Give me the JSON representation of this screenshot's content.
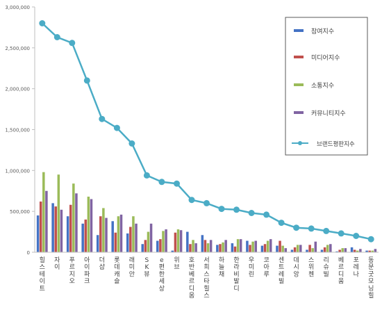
{
  "chart_data": {
    "type": "bar",
    "categories": [
      "힐스테이트",
      "자이",
      "푸르지오",
      "아이파크",
      "더샵",
      "롯데캐슬",
      "래미안",
      "SK뷰",
      "e편한세상",
      "위브",
      "호반베르디움",
      "서희스타힐스",
      "하늘채",
      "한라비발디",
      "우미린",
      "코아루",
      "센트레빌",
      "데시앙",
      "스위첸",
      "리슈빌",
      "베르디움",
      "포레나",
      "동문굿모닝힐"
    ],
    "series": [
      {
        "name": "참여지수",
        "color": "#4472c4",
        "values": [
          450000,
          600000,
          440000,
          350000,
          210000,
          380000,
          230000,
          100000,
          140000,
          20000,
          250000,
          210000,
          90000,
          110000,
          140000,
          80000,
          80000,
          30000,
          30000,
          30000,
          10000,
          60000,
          20000
        ]
      },
      {
        "name": "미디어지수",
        "color": "#c0504d",
        "values": [
          620000,
          560000,
          580000,
          400000,
          440000,
          240000,
          310000,
          150000,
          160000,
          240000,
          100000,
          150000,
          100000,
          70000,
          90000,
          100000,
          140000,
          60000,
          90000,
          60000,
          30000,
          30000,
          20000
        ]
      },
      {
        "name": "소통지수",
        "color": "#9bbb59",
        "values": [
          980000,
          950000,
          840000,
          680000,
          540000,
          440000,
          440000,
          250000,
          260000,
          280000,
          150000,
          110000,
          120000,
          160000,
          130000,
          140000,
          80000,
          90000,
          50000,
          90000,
          50000,
          20000,
          20000
        ]
      },
      {
        "name": "커뮤니티지수",
        "color": "#8064a2",
        "values": [
          750000,
          520000,
          720000,
          650000,
          420000,
          460000,
          350000,
          350000,
          280000,
          270000,
          110000,
          150000,
          150000,
          160000,
          140000,
          160000,
          50000,
          90000,
          130000,
          100000,
          50000,
          40000,
          40000
        ]
      }
    ],
    "line": {
      "name": "브랜드평판지수",
      "color": "#4bacc6",
      "values": [
        2800000,
        2630000,
        2560000,
        2100000,
        1630000,
        1520000,
        1330000,
        940000,
        860000,
        840000,
        640000,
        600000,
        530000,
        520000,
        480000,
        460000,
        360000,
        300000,
        290000,
        260000,
        230000,
        200000,
        160000
      ]
    },
    "ylim": [
      0,
      3000000
    ],
    "yticks": [
      "0",
      "500,000",
      "1,000,000",
      "1,500,000",
      "2,000,000",
      "2,500,000",
      "3,000,000"
    ],
    "legend_position": "top-right",
    "grid": false,
    "title": "",
    "xlabel": "",
    "ylabel": ""
  }
}
